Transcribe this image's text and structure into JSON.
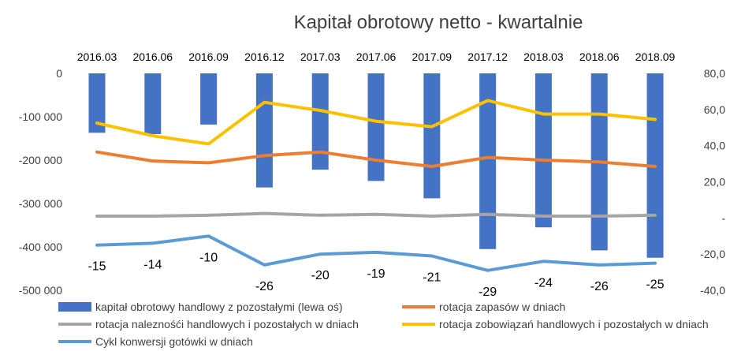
{
  "chart_data": {
    "type": "bar",
    "title": "Kapitał obrotowy netto - kwartalnie",
    "categories": [
      "2016.03",
      "2016.06",
      "2016.09",
      "2016.12",
      "2017.03",
      "2017.06",
      "2017.09",
      "2017.12",
      "2018.03",
      "2018.06",
      "2018.09"
    ],
    "left_axis": {
      "ylim": [
        -500000,
        0
      ],
      "ticks": [
        0,
        -100000,
        -200000,
        -300000,
        -400000,
        -500000
      ],
      "tick_labels": [
        "0",
        "-100 000",
        "-200 000",
        "-300 000",
        "-400 000",
        "-500 000"
      ]
    },
    "right_axis": {
      "ylim": [
        -40,
        80
      ],
      "ticks": [
        80,
        60,
        40,
        20,
        0,
        -20,
        -40
      ],
      "tick_labels": [
        "80,0",
        "60,0",
        "40,0",
        "20,0",
        "-",
        "-20,0",
        "-40,0"
      ]
    },
    "series": [
      {
        "name": "kapitał obrotowy handlowy z pozostałymi (lewa oś)",
        "type": "bar",
        "axis": "left",
        "color": "#4472C4",
        "values": [
          -137000,
          -140000,
          -118000,
          -263000,
          -222000,
          -248000,
          -288000,
          -405000,
          -355000,
          -408000,
          -425000
        ]
      },
      {
        "name": "rotacja zapasów w dniach",
        "type": "line",
        "axis": "right",
        "color": "#ED7D31",
        "values": [
          36.5,
          31.5,
          30.5,
          34.5,
          36.5,
          32,
          28.5,
          33.5,
          32,
          31,
          28.5
        ]
      },
      {
        "name": "rotacja naleznośći handlowych i pozostałych w dniach",
        "type": "line",
        "axis": "right",
        "color": "#A5A5A5",
        "values": [
          1,
          1,
          1.5,
          2.5,
          1.5,
          2,
          1,
          2,
          1,
          1,
          1.5
        ]
      },
      {
        "name": "rotacja zobowiązań handlowych i pozostałych w dniach",
        "type": "line",
        "axis": "right",
        "color": "#FFC000",
        "values": [
          52.5,
          45.5,
          41,
          64,
          59.5,
          53.5,
          50.5,
          65,
          57.5,
          57.5,
          54.5
        ]
      },
      {
        "name": "Cykl konwersji gotówki w dniach",
        "type": "line",
        "axis": "right",
        "color": "#5B9BD5",
        "values": [
          -15,
          -14,
          -10,
          -26,
          -20,
          -19,
          -21,
          -29,
          -24,
          -26,
          -25
        ],
        "data_labels": [
          "-15",
          "-14",
          "-10",
          "-26",
          "-20",
          "-19",
          "-21",
          "-29",
          "-24",
          "-26",
          "-25"
        ]
      }
    ],
    "legend_position": "bottom",
    "grid": false
  }
}
